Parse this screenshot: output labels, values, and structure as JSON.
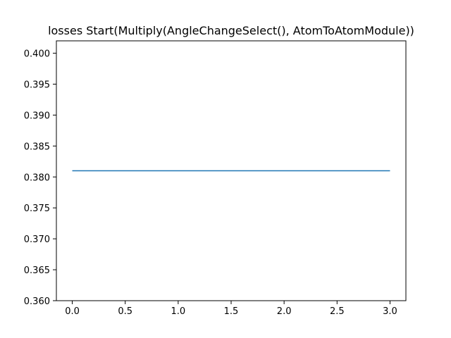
{
  "chart_data": {
    "type": "line",
    "title": "losses Start(Multiply(AngleChangeSelect(), AtomToAtomModule))",
    "xlabel": "",
    "ylabel": "",
    "xlim": [
      -0.15,
      3.15
    ],
    "ylim": [
      0.36,
      0.402
    ],
    "xticks": [
      0.0,
      0.5,
      1.0,
      1.5,
      2.0,
      2.5,
      3.0
    ],
    "xtick_labels": [
      "0.0",
      "0.5",
      "1.0",
      "1.5",
      "2.0",
      "2.5",
      "3.0"
    ],
    "yticks": [
      0.36,
      0.365,
      0.37,
      0.375,
      0.38,
      0.385,
      0.39,
      0.395,
      0.4
    ],
    "ytick_labels": [
      "0.360",
      "0.365",
      "0.370",
      "0.375",
      "0.380",
      "0.385",
      "0.390",
      "0.395",
      "0.400"
    ],
    "grid": false,
    "series": [
      {
        "x": [
          0,
          1,
          2,
          3
        ],
        "y": [
          0.381,
          0.381,
          0.381,
          0.381
        ],
        "color": "#1f77b4"
      }
    ]
  }
}
